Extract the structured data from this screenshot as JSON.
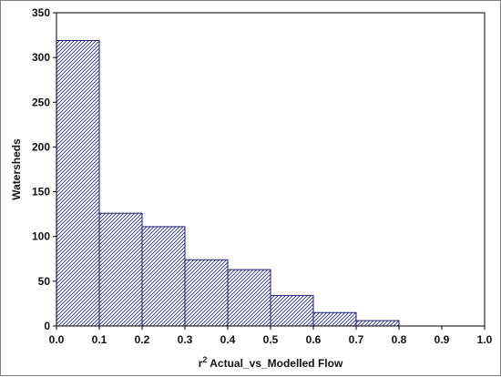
{
  "chart_data": {
    "type": "bar",
    "bins": [
      {
        "x0": 0.0,
        "x1": 0.1,
        "value": 319
      },
      {
        "x0": 0.1,
        "x1": 0.2,
        "value": 126
      },
      {
        "x0": 0.2,
        "x1": 0.3,
        "value": 111
      },
      {
        "x0": 0.3,
        "x1": 0.4,
        "value": 74
      },
      {
        "x0": 0.4,
        "x1": 0.5,
        "value": 63
      },
      {
        "x0": 0.5,
        "x1": 0.6,
        "value": 34
      },
      {
        "x0": 0.6,
        "x1": 0.7,
        "value": 15
      },
      {
        "x0": 0.7,
        "x1": 0.8,
        "value": 6
      },
      {
        "x0": 0.8,
        "x1": 0.9,
        "value": 0
      },
      {
        "x0": 0.9,
        "x1": 1.0,
        "value": 0
      }
    ],
    "xlabel_superscript_prefix": "r",
    "xlabel_superscript": "2",
    "xlabel": " Actual_vs_Modelled Flow",
    "ylabel": "Watersheds",
    "xlim": [
      0.0,
      1.0
    ],
    "ylim": [
      0,
      350
    ],
    "xticks": [
      "0.0",
      "0.1",
      "0.2",
      "0.3",
      "0.4",
      "0.5",
      "0.6",
      "0.7",
      "0.8",
      "0.9",
      "1.0"
    ],
    "yticks": [
      "0",
      "50",
      "100",
      "150",
      "200",
      "250",
      "300",
      "350"
    ],
    "grid": false,
    "bar_fill": "#ffffff",
    "hatch_color": "#1a1f7a",
    "bar_edge_color": "#1a1f7a"
  }
}
